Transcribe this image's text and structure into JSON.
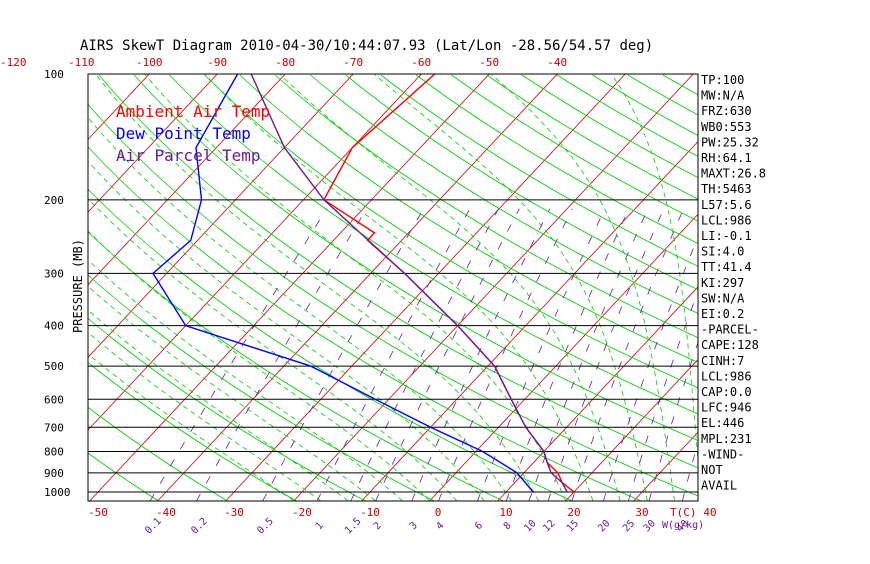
{
  "chart_data": {
    "type": "line",
    "title": "AIRS SkewT Diagram 2010-04-30/10:44:07.93 (Lat/Lon -28.56/54.57 deg)",
    "ylabel": "PRESSURE (MB)",
    "pressure_ticks": [
      "100",
      "200",
      "300",
      "400",
      "500",
      "600",
      "700",
      "800",
      "900",
      "1000"
    ],
    "pressure_levels": [
      100,
      200,
      300,
      400,
      500,
      600,
      700,
      800,
      900,
      1000
    ],
    "top_temp_ticks": [
      "-120",
      "-110",
      "-100",
      "-90",
      "-80",
      "-70",
      "-60",
      "-50",
      "-40"
    ],
    "bottom_temp_ticks": [
      "-50",
      "-40",
      "-30",
      "-20",
      "-10",
      "0",
      "10",
      "20",
      "30",
      "40"
    ],
    "bottom_temp_unit": "T(C)",
    "mixing_ratio_ticks": [
      "0.1",
      "0.2",
      "0.5",
      "1",
      "1.5",
      "2",
      "3",
      "4",
      "6",
      "8",
      "10",
      "12",
      "15",
      "20",
      "25",
      "30",
      "40"
    ],
    "mixing_ratio_unit": "W(g/kg)",
    "xlim_bottom": [
      -50,
      40
    ],
    "ylim": [
      1000,
      100
    ],
    "log_pressure_axis": true,
    "legend": [
      {
        "label": "Ambient Air Temp",
        "color": "#ff0000"
      },
      {
        "label": "Dew Point Temp",
        "color": "#0000ff"
      },
      {
        "label": "Air Parcel Temp",
        "color": "#6a1b9a"
      }
    ],
    "legend_position": "top-left",
    "series": [
      {
        "name": "Ambient Air Temp",
        "color": "#ff0000",
        "pressure": [
          1000,
          950,
          900,
          850,
          800,
          700,
          600,
          500,
          400,
          300,
          250,
          240,
          200,
          150,
          100
        ],
        "temperature": [
          20,
          17,
          15,
          12,
          10,
          4,
          -2,
          -9,
          -20,
          -35,
          -45,
          -45,
          -57,
          -60,
          -58
        ]
      },
      {
        "name": "Dew Point Temp",
        "color": "#0000ff",
        "pressure": [
          1000,
          900,
          800,
          700,
          600,
          500,
          400,
          300,
          250,
          200,
          150,
          100
        ],
        "temperature": [
          14,
          9,
          1,
          -10,
          -22,
          -36,
          -60,
          -72,
          -71,
          -75,
          -83,
          -87
        ]
      },
      {
        "name": "Air Parcel Temp",
        "color": "#6a1b9a",
        "pressure": [
          1000,
          950,
          900,
          850,
          800,
          700,
          600,
          500,
          400,
          300,
          200,
          150,
          100
        ],
        "temperature": [
          19,
          17,
          14,
          12,
          10,
          4,
          -2,
          -9,
          -20,
          -35,
          -57,
          -70,
          -85
        ]
      }
    ],
    "indices": [
      "TP:100",
      "MW:N/A",
      "FRZ:630",
      "WB0:553",
      "PW:25.32",
      "RH:64.1",
      "MAXT:26.8",
      "TH:5463",
      "L57:5.6",
      "LCL:986",
      "LI:-0.1",
      "SI:4.0",
      "TT:41.4",
      "KI:297",
      "SW:N/A",
      "EI:0.2",
      "-PARCEL-",
      "CAPE:128",
      "CINH:7",
      "LCL:986",
      "CAP:0.0",
      "LFC:946",
      "EL:446",
      "MPL:231",
      "-WIND-",
      "NOT",
      "AVAIL"
    ],
    "grid": true,
    "colors": {
      "isotherm": "#cc0000",
      "dry_adiabat": "#00cc00",
      "moist_adiabat": "#00cc00",
      "mixing_ratio": "#6a1b9a",
      "isobar": "#000000"
    }
  }
}
